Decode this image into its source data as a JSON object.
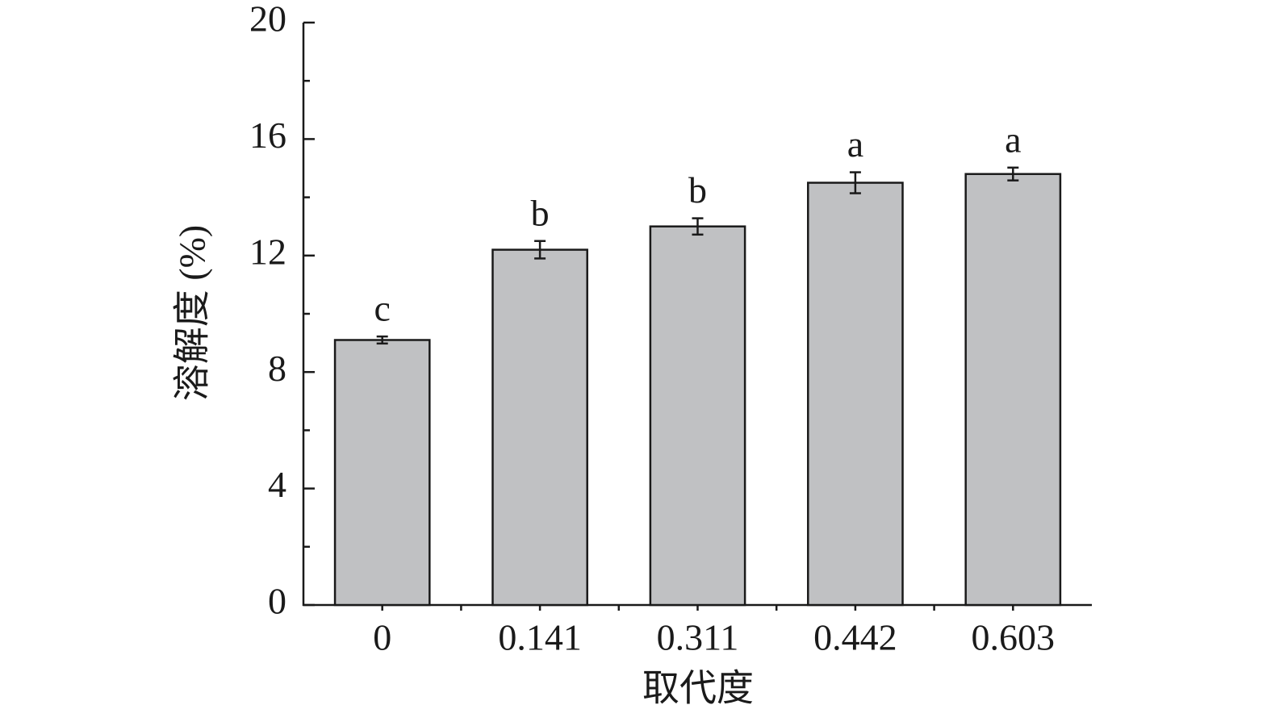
{
  "chart_data": {
    "type": "bar",
    "x_label": "取代度",
    "y_label": "溶解度 (%)",
    "categories": [
      "0",
      "0.141",
      "0.311",
      "0.442",
      "0.603"
    ],
    "values": [
      9.1,
      12.2,
      13.0,
      14.5,
      14.8
    ],
    "errors": [
      0.12,
      0.3,
      0.28,
      0.36,
      0.22
    ],
    "significance": [
      "c",
      "b",
      "b",
      "a",
      "a"
    ],
    "color": "#c0c1c3",
    "ylim": [
      0,
      20
    ],
    "yticks": [
      0,
      4,
      8,
      12,
      16,
      20
    ],
    "y_minor_ticks": [
      2,
      6,
      10,
      14,
      18
    ]
  }
}
